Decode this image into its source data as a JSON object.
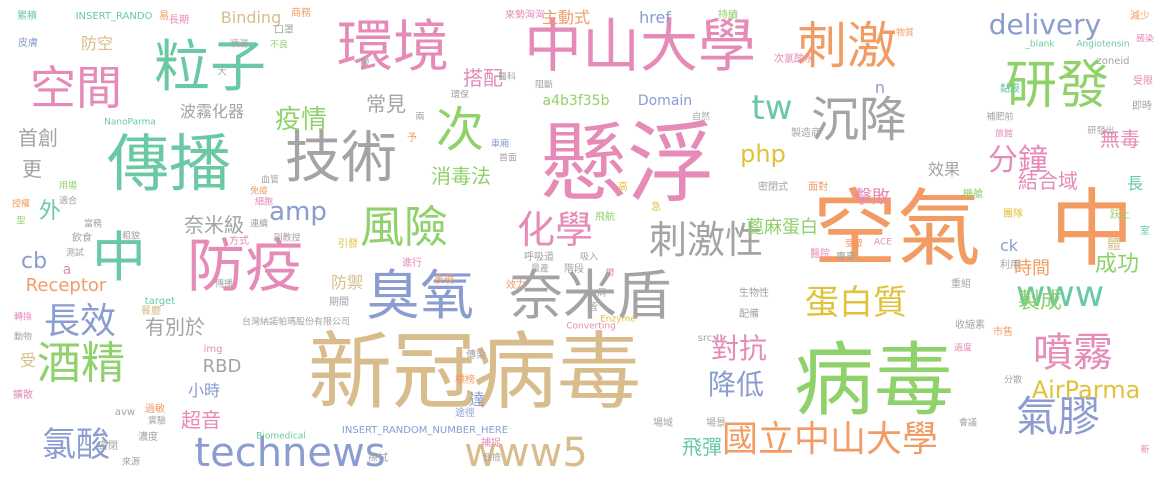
{
  "palette": {
    "tan": "#d8bc8c",
    "pink": "#e68ab8",
    "green": "#8fd16a",
    "orange": "#f29c64",
    "gray": "#a4a4a4",
    "blue": "#8a9cd0",
    "teal": "#69c9a4",
    "yellow": "#e0c23c"
  },
  "words": [
    {
      "text": "新冠",
      "color": "tan"
    },
    {
      "text": "病毒",
      "color": "tan"
    },
    {
      "text": "病毒",
      "color": "green"
    },
    {
      "text": "懸浮",
      "color": "pink"
    },
    {
      "text": "空氣",
      "color": "orange"
    },
    {
      "text": "中",
      "color": "orange"
    },
    {
      "text": "中山大學",
      "color": "pink"
    },
    {
      "text": "環境",
      "color": "pink"
    },
    {
      "text": "傳播",
      "color": "teal"
    },
    {
      "text": "粒子",
      "color": "teal"
    },
    {
      "text": "刺激",
      "color": "orange"
    },
    {
      "text": "技術",
      "color": "gray"
    },
    {
      "text": "奈米盾",
      "color": "gray"
    },
    {
      "text": "防疫",
      "color": "pink"
    },
    {
      "text": "臭氧",
      "color": "blue"
    },
    {
      "text": "中",
      "color": "teal"
    },
    {
      "text": "研發",
      "color": "green"
    },
    {
      "text": "沉降",
      "color": "gray"
    },
    {
      "text": "次",
      "color": "green"
    },
    {
      "text": "空間",
      "color": "pink"
    },
    {
      "text": "風險",
      "color": "green"
    },
    {
      "text": "刺激性",
      "color": "gray"
    },
    {
      "text": "化學",
      "color": "pink"
    },
    {
      "text": "酒精",
      "color": "green"
    },
    {
      "text": "氣膠",
      "color": "blue"
    },
    {
      "text": "噴霧",
      "color": "pink"
    },
    {
      "text": "國立中山大學",
      "color": "orange"
    },
    {
      "text": "technews",
      "color": "blue"
    },
    {
      "text": "www5",
      "color": "tan"
    },
    {
      "text": "www",
      "color": "teal"
    },
    {
      "text": "蛋白質",
      "color": "yellow"
    },
    {
      "text": "長效",
      "color": "blue"
    },
    {
      "text": "氯酸",
      "color": "blue"
    },
    {
      "text": "分鐘",
      "color": "pink"
    },
    {
      "text": "delivery",
      "color": "blue"
    },
    {
      "text": "tw",
      "color": "teal"
    },
    {
      "text": "降低",
      "color": "blue"
    },
    {
      "text": "對抗",
      "color": "pink"
    },
    {
      "text": "AirParma",
      "color": "yellow"
    },
    {
      "text": "疫情",
      "color": "green"
    },
    {
      "text": "amp",
      "color": "blue"
    },
    {
      "text": "php",
      "color": "yellow"
    },
    {
      "text": "製成",
      "color": "green"
    },
    {
      "text": "成功",
      "color": "green"
    },
    {
      "text": "常見",
      "color": "gray"
    },
    {
      "text": "奈米級",
      "color": "gray"
    },
    {
      "text": "有別於",
      "color": "gray"
    },
    {
      "text": "消毒法",
      "color": "green"
    },
    {
      "text": "飛彈",
      "color": "teal"
    },
    {
      "text": "超音",
      "color": "pink"
    },
    {
      "text": "RBD",
      "color": "gray"
    },
    {
      "text": "Receptor",
      "color": "orange"
    },
    {
      "text": "cb",
      "color": "blue"
    },
    {
      "text": "首創",
      "color": "gray"
    },
    {
      "text": "更",
      "color": "gray"
    },
    {
      "text": "外",
      "color": "teal"
    },
    {
      "text": "無毒",
      "color": "pink"
    },
    {
      "text": "結合域",
      "color": "pink"
    },
    {
      "text": "擊敗",
      "color": "pink"
    },
    {
      "text": "效果",
      "color": "gray"
    },
    {
      "text": "蓖麻蛋白",
      "color": "green"
    },
    {
      "text": "時間",
      "color": "orange"
    },
    {
      "text": "防禦",
      "color": "tan"
    },
    {
      "text": "小時",
      "color": "blue"
    },
    {
      "text": "達",
      "color": "blue"
    },
    {
      "text": "搭配",
      "color": "pink"
    },
    {
      "text": "a4b3f35b",
      "color": "green"
    },
    {
      "text": "Domain",
      "color": "blue"
    },
    {
      "text": "波霧化器",
      "color": "gray"
    },
    {
      "text": "防空",
      "color": "tan"
    },
    {
      "text": "主動式",
      "color": "orange"
    },
    {
      "text": "href",
      "color": "blue"
    },
    {
      "text": "Binding",
      "color": "tan"
    },
    {
      "text": "ck",
      "color": "blue"
    },
    {
      "text": "長",
      "color": "teal"
    },
    {
      "text": "體",
      "color": "tan"
    },
    {
      "text": "n",
      "color": "blue"
    },
    {
      "text": "a",
      "color": "pink"
    },
    {
      "text": "受",
      "color": "tan"
    },
    {
      "text": "INSERT_RANDOM_NUMBER_HERE",
      "color": "blue"
    },
    {
      "text": "台灣納諾帕瑪股份有限公司",
      "color": "gray"
    },
    {
      "text": "INSERT_RANDO",
      "color": "teal"
    },
    {
      "text": "img",
      "color": "pink"
    },
    {
      "text": "avw",
      "color": "gray"
    },
    {
      "text": "src",
      "color": "gray"
    },
    {
      "text": "Biomedical",
      "color": "teal"
    },
    {
      "text": "Converting",
      "color": "pink"
    },
    {
      "text": "Enzyme",
      "color": "yellow"
    },
    {
      "text": "target",
      "color": "teal"
    },
    {
      "text": "NanoParma",
      "color": "teal"
    },
    {
      "text": "Angiotensin",
      "color": "teal"
    },
    {
      "text": "_blank",
      "color": "teal"
    },
    {
      "text": "zoneid",
      "color": "gray"
    },
    {
      "text": "ACE",
      "color": "pink"
    },
    {
      "text": "累積",
      "color": "teal"
    },
    {
      "text": "皮膚",
      "color": "blue"
    },
    {
      "text": "長期",
      "color": "pink"
    },
    {
      "text": "商務",
      "color": "orange"
    },
    {
      "text": "口罩",
      "color": "gray"
    },
    {
      "text": "不良",
      "color": "green"
    },
    {
      "text": "噴灑",
      "color": "gray"
    },
    {
      "text": "來勢洶洶",
      "color": "pink"
    },
    {
      "text": "持續",
      "color": "green"
    },
    {
      "text": "次氯酸水",
      "color": "pink"
    },
    {
      "text": "物質",
      "color": "orange"
    },
    {
      "text": "減少",
      "color": "orange"
    },
    {
      "text": "感染",
      "color": "pink"
    },
    {
      "text": "受限",
      "color": "pink"
    },
    {
      "text": "即時",
      "color": "gray"
    },
    {
      "text": "黏膜",
      "color": "teal"
    },
    {
      "text": "補肥前",
      "color": "gray"
    },
    {
      "text": "研發出",
      "color": "gray"
    },
    {
      "text": "旅館",
      "color": "pink"
    },
    {
      "text": "製造商",
      "color": "gray"
    },
    {
      "text": "車廂",
      "color": "blue"
    },
    {
      "text": "密閉式",
      "color": "gray"
    },
    {
      "text": "面對",
      "color": "orange"
    },
    {
      "text": "機艙",
      "color": "green"
    },
    {
      "text": "團隊",
      "color": "yellow"
    },
    {
      "text": "跃上",
      "color": "green"
    },
    {
      "text": "室",
      "color": "teal"
    },
    {
      "text": "利用",
      "color": "gray"
    },
    {
      "text": "專車",
      "color": "gray"
    },
    {
      "text": "受眾",
      "color": "orange"
    },
    {
      "text": "醫院",
      "color": "pink"
    },
    {
      "text": "重組",
      "color": "gray"
    },
    {
      "text": "生物性",
      "color": "gray"
    },
    {
      "text": "配備",
      "color": "gray"
    },
    {
      "text": "收縮素",
      "color": "gray"
    },
    {
      "text": "市售",
      "color": "orange"
    },
    {
      "text": "過度",
      "color": "pink"
    },
    {
      "text": "分散",
      "color": "gray"
    },
    {
      "text": "會議",
      "color": "gray"
    },
    {
      "text": "新",
      "color": "pink"
    },
    {
      "text": "標榜",
      "color": "orange"
    },
    {
      "text": "途徑",
      "color": "blue"
    },
    {
      "text": "場域",
      "color": "gray"
    },
    {
      "text": "場景",
      "color": "gray"
    },
    {
      "text": "捕捉",
      "color": "pink"
    },
    {
      "text": "負擔",
      "color": "gray"
    },
    {
      "text": "擴散",
      "color": "pink"
    },
    {
      "text": "過敏",
      "color": "orange"
    },
    {
      "text": "實驗",
      "color": "gray"
    },
    {
      "text": "傳染",
      "color": "gray"
    },
    {
      "text": "濃度",
      "color": "gray"
    },
    {
      "text": "密閉",
      "color": "gray"
    },
    {
      "text": "來源",
      "color": "gray"
    },
    {
      "text": "擦拭",
      "color": "gray"
    },
    {
      "text": "動物",
      "color": "gray"
    },
    {
      "text": "轉換",
      "color": "pink"
    },
    {
      "text": "餐廳",
      "color": "tan"
    },
    {
      "text": "飲食",
      "color": "gray"
    },
    {
      "text": "測試",
      "color": "gray"
    },
    {
      "text": "授權",
      "color": "orange"
    },
    {
      "text": "適合",
      "color": "gray"
    },
    {
      "text": "用場",
      "color": "green"
    },
    {
      "text": "型",
      "color": "green"
    },
    {
      "text": "當務",
      "color": "gray"
    },
    {
      "text": "方式",
      "color": "pink"
    },
    {
      "text": "期間",
      "color": "gray"
    },
    {
      "text": "呼吸道",
      "color": "gray"
    },
    {
      "text": "階段",
      "color": "gray"
    },
    {
      "text": "飛航",
      "color": "green"
    },
    {
      "text": "效力",
      "color": "orange"
    },
    {
      "text": "吸入",
      "color": "gray"
    },
    {
      "text": "量產",
      "color": "gray"
    },
    {
      "text": "高",
      "color": "yellow"
    },
    {
      "text": "急",
      "color": "yellow"
    },
    {
      "text": "醫科",
      "color": "gray"
    },
    {
      "text": "環保",
      "color": "gray"
    },
    {
      "text": "阻斷",
      "color": "gray"
    },
    {
      "text": "自然",
      "color": "gray"
    },
    {
      "text": "副教授",
      "color": "gray"
    },
    {
      "text": "連續",
      "color": "gray"
    },
    {
      "text": "細胞",
      "color": "pink"
    },
    {
      "text": "免疫",
      "color": "orange"
    },
    {
      "text": "引發",
      "color": "yellow"
    },
    {
      "text": "進行",
      "color": "pink"
    },
    {
      "text": "表現",
      "color": "orange"
    },
    {
      "text": "首面",
      "color": "gray"
    },
    {
      "text": "予",
      "color": "orange"
    },
    {
      "text": "易",
      "color": "orange"
    },
    {
      "text": "皆",
      "color": "gray"
    },
    {
      "text": "帶",
      "color": "pink"
    },
    {
      "text": "酸",
      "color": "gray"
    },
    {
      "text": "周",
      "color": "gray"
    },
    {
      "text": "兩",
      "color": "gray"
    },
    {
      "text": "粗貌",
      "color": "gray"
    },
    {
      "text": "血管",
      "color": "gray"
    },
    {
      "text": "傳播",
      "color": "gray"
    },
    {
      "text": "大",
      "color": "gray"
    },
    {
      "text": "設置",
      "color": "gray"
    }
  ]
}
